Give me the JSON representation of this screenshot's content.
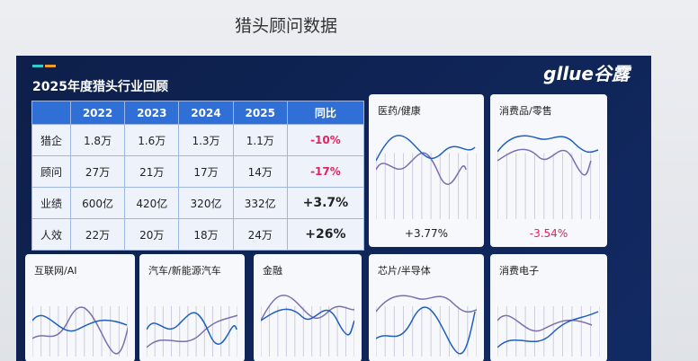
{
  "header": {
    "title": "猎头顾问数据"
  },
  "slide": {
    "title": "2025年度猎头行业回顾",
    "logo": "gllue谷露"
  },
  "table": {
    "columns": [
      "",
      "2022",
      "2023",
      "2024",
      "2025",
      "同比"
    ],
    "rows": [
      [
        "猎企",
        "1.8万",
        "1.6万",
        "1.3万",
        "1.1万",
        "-10%"
      ],
      [
        "顾问",
        "27万",
        "21万",
        "17万",
        "14万",
        "-17%"
      ],
      [
        "业绩",
        "600亿",
        "420亿",
        "320亿",
        "332亿",
        "+3.7%"
      ],
      [
        "人效",
        "22万",
        "20万",
        "18万",
        "24万",
        "+26%"
      ]
    ]
  },
  "cards": [
    {
      "title": "医药/健康",
      "change": "+3.77%"
    },
    {
      "title": "消费品/零售",
      "change": "-3.54%"
    },
    {
      "title": "互联网/AI"
    },
    {
      "title": "汽车/新能源汽车"
    },
    {
      "title": "金融"
    },
    {
      "title": "芯片/半导体"
    },
    {
      "title": "消费电子"
    }
  ]
}
